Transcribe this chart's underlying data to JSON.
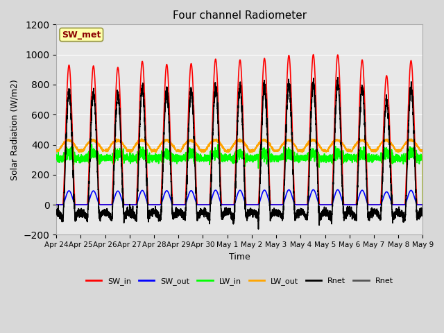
{
  "title": "Four channel Radiometer",
  "xlabel": "Time",
  "ylabel": "Solar Radiation (W/m2)",
  "ylim": [
    -200,
    1200
  ],
  "yticks": [
    -200,
    0,
    200,
    400,
    600,
    800,
    1000,
    1200
  ],
  "fig_bg_color": "#d8d8d8",
  "plot_bg_color": "#e8e8e8",
  "annotation_text": "SW_met",
  "annotation_color": "#8b0000",
  "annotation_bg": "#ffffaa",
  "x_tick_labels": [
    "Apr 24",
    "Apr 25",
    "Apr 26",
    "Apr 27",
    "Apr 28",
    "Apr 29",
    "Apr 30",
    "May 1",
    "May 2",
    "May 3",
    "May 4",
    "May 5",
    "May 6",
    "May 7",
    "May 8",
    "May 9"
  ],
  "series": {
    "SW_in": {
      "color": "#ff0000",
      "lw": 1.2
    },
    "SW_out": {
      "color": "#0000ff",
      "lw": 1.2
    },
    "LW_in": {
      "color": "#00ff00",
      "lw": 1.2
    },
    "LW_out": {
      "color": "#ffa500",
      "lw": 1.2
    },
    "Rnet": {
      "color": "#000000",
      "lw": 1.2
    }
  },
  "legend": [
    {
      "label": "SW_in",
      "color": "#ff0000"
    },
    {
      "label": "SW_out",
      "color": "#0000ff"
    },
    {
      "label": "LW_in",
      "color": "#00ff00"
    },
    {
      "label": "LW_out",
      "color": "#ffa500"
    },
    {
      "label": "Rnet",
      "color": "#000000"
    },
    {
      "label": "Rnet",
      "color": "#555555"
    }
  ],
  "num_days": 15,
  "points_per_day": 288,
  "peak_sw": [
    930,
    925,
    915,
    955,
    935,
    940,
    970,
    965,
    975,
    995,
    1000,
    998,
    965,
    860,
    960
  ],
  "rise": 0.27,
  "set_": 0.77
}
